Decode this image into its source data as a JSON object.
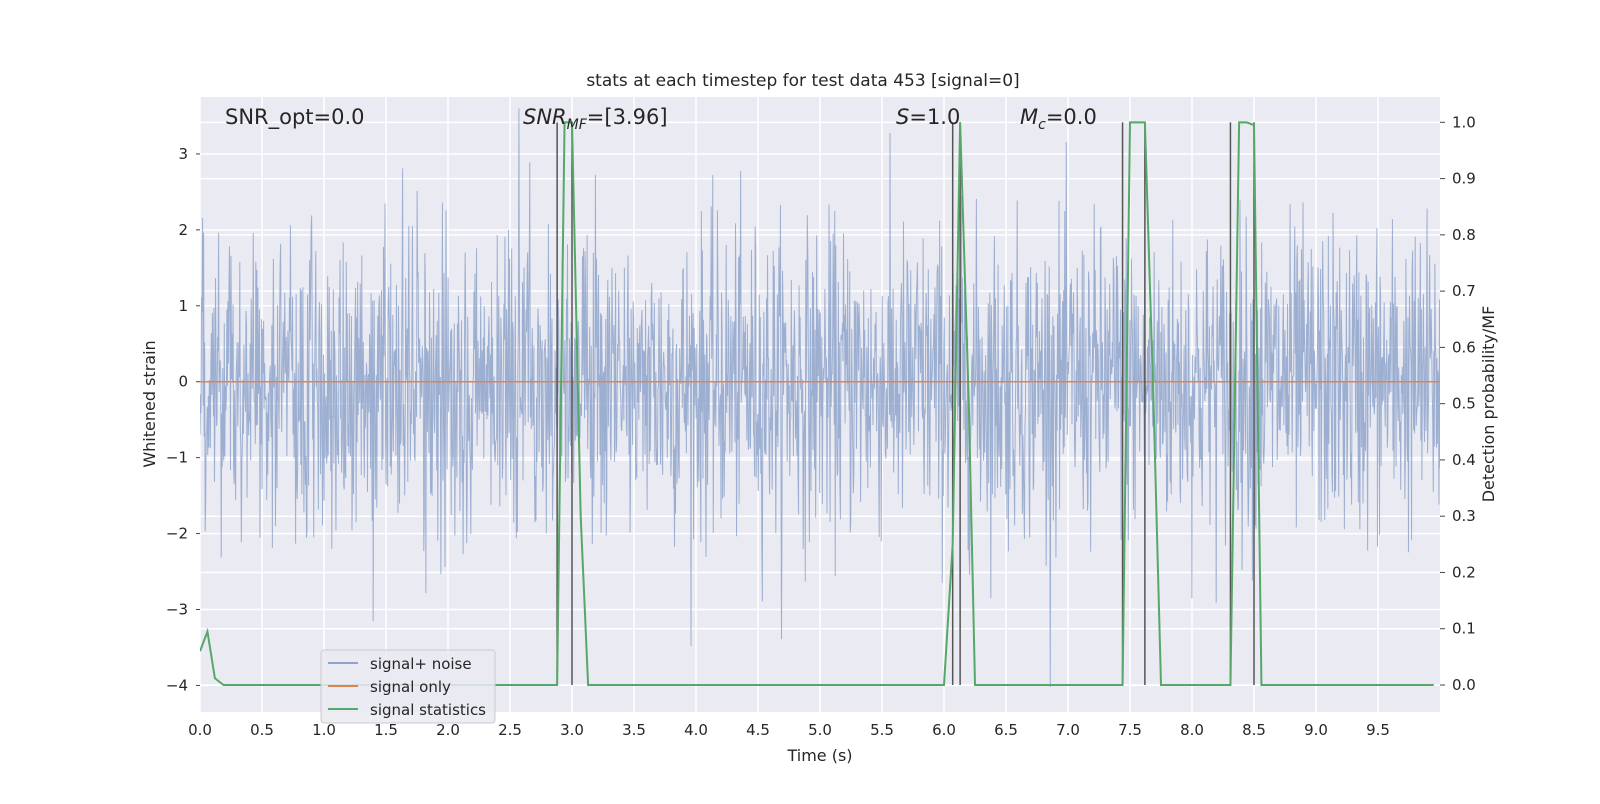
{
  "chart_data": {
    "type": "line",
    "title": "stats at each timestep for test data 453 [signal=0]",
    "xlabel": "Time (s)",
    "ylabel": "Whitened strain",
    "y2label": "Detection probability/MF",
    "xlim": [
      0.0,
      10.0
    ],
    "ylim": [
      -4.35,
      3.75
    ],
    "y2lim": [
      -0.048,
      1.045
    ],
    "xticks": [
      "0.0",
      "0.5",
      "1.0",
      "1.5",
      "2.0",
      "2.5",
      "3.0",
      "3.5",
      "4.0",
      "4.5",
      "5.0",
      "5.5",
      "6.0",
      "6.5",
      "7.0",
      "7.5",
      "8.0",
      "8.5",
      "9.0",
      "9.5"
    ],
    "yticks": [
      "3",
      "2",
      "1",
      "0",
      "−1",
      "−2",
      "−3",
      "−4"
    ],
    "y2ticks": [
      "1.0",
      "0.9",
      "0.8",
      "0.7",
      "0.6",
      "0.5",
      "0.4",
      "0.3",
      "0.2",
      "0.1",
      "0.0"
    ],
    "grid": true,
    "legend_position": "lower-left",
    "annotations": {
      "snr_opt": "SNR_opt=0.0",
      "snr_mf_sym": "SNR",
      "snr_mf_sub": "MF",
      "snr_mf_val": "=[3.96]",
      "s_sym": "S",
      "s_val": "=1.0",
      "mc_sym": "M",
      "mc_sub": "c",
      "mc_val": "=0.0"
    },
    "series": [
      {
        "name": "signal+ noise",
        "color": "#8fa4cb",
        "description_values": "white Gaussian noise, std ≈ 1, sampled over 0–10 s",
        "noise_std": 1.0,
        "samples": 2400
      },
      {
        "name": "signal only",
        "color": "#dd8452",
        "x": [
          0.0,
          10.0
        ],
        "y": [
          0.0,
          0.0
        ]
      },
      {
        "name": "signal statistics",
        "color": "#55a868",
        "axis": "right",
        "x": [
          0.0,
          0.06,
          0.12,
          0.19,
          2.88,
          2.94,
          3.0,
          3.07,
          3.13,
          6.0,
          6.07,
          6.13,
          6.2,
          6.25,
          7.44,
          7.5,
          7.56,
          7.62,
          7.69,
          7.75,
          8.31,
          8.38,
          8.44,
          8.5,
          8.56,
          9.95
        ],
        "y": [
          0.06,
          0.095,
          0.012,
          0.0,
          0.0,
          1.0,
          1.0,
          0.3,
          0.0,
          0.0,
          0.25,
          1.0,
          0.5,
          0.0,
          0.0,
          1.0,
          1.0,
          1.0,
          0.5,
          0.0,
          0.0,
          1.0,
          1.0,
          0.995,
          0.0,
          0.0
        ]
      }
    ],
    "vertical_lines": {
      "color": "#555555",
      "x": [
        2.88,
        3.0,
        6.07,
        6.13,
        7.44,
        7.62,
        8.31,
        8.5
      ]
    }
  }
}
